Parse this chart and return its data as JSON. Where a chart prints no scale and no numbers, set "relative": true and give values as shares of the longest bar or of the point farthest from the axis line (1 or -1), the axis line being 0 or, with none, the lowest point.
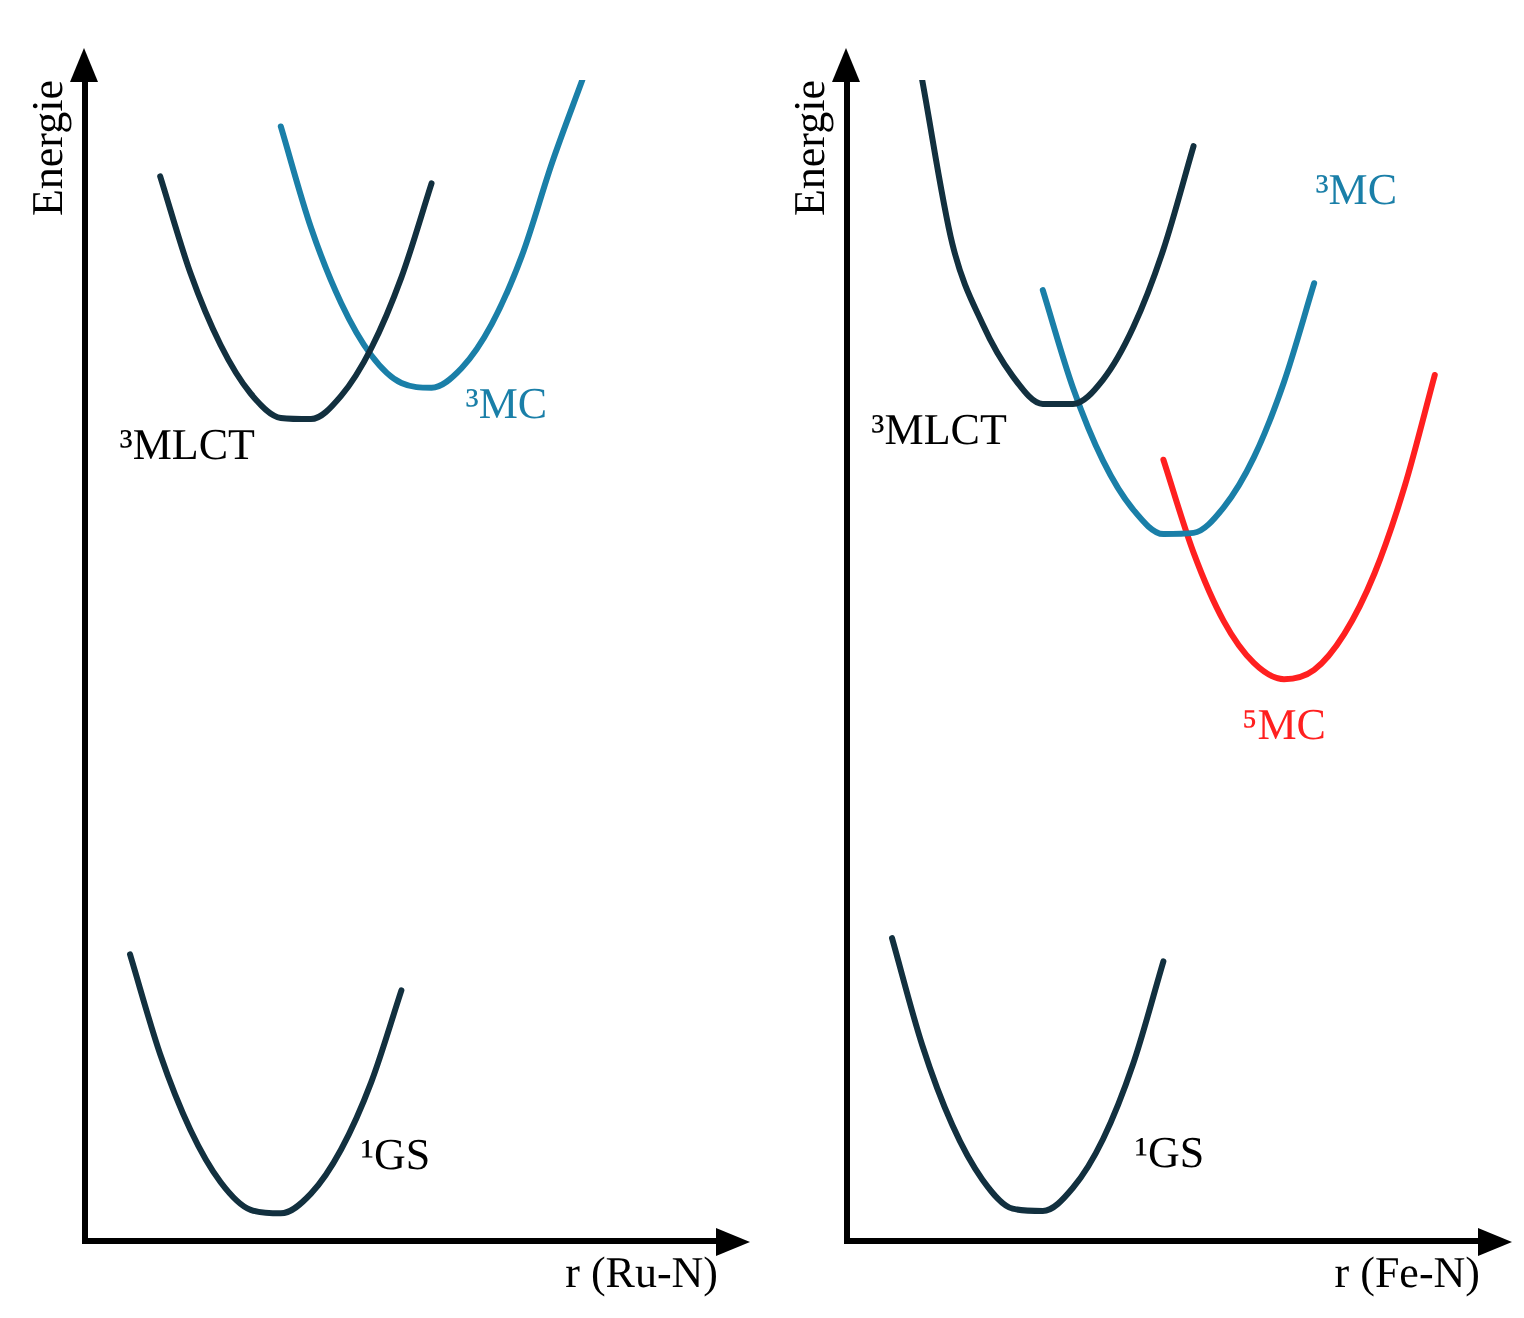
{
  "chart_data": [
    {
      "type": "line",
      "relative": true,
      "ylabel": "Energie",
      "xlabel": "r (Ru-N)",
      "marker": "none",
      "line_style": "solid",
      "categories": [
        null,
        null,
        null,
        null,
        null,
        null,
        null,
        null,
        null,
        null,
        null,
        null,
        null,
        null,
        null,
        null,
        null,
        null,
        null,
        null,
        null
      ],
      "series": [
        {
          "name": "³MLCT",
          "color": "#12303f",
          "values": [
            null,
            null,
            0.917,
            0.834,
            0.772,
            0.73,
            0.709,
            0.708,
            0.728,
            0.769,
            0.83,
            0.911,
            null,
            null,
            null,
            null,
            null,
            null,
            null,
            null,
            null
          ]
        },
        {
          "name": "³MC",
          "color": "#1a7fa8",
          "values": [
            null,
            null,
            null,
            null,
            null,
            null,
            0.96,
            0.873,
            0.808,
            0.763,
            0.739,
            0.735,
            0.752,
            0.79,
            0.849,
            0.929,
            1.0,
            null,
            null,
            null,
            null
          ]
        },
        {
          "name": "¹GS",
          "color": "#12303f",
          "values": [
            null,
            0.247,
            0.161,
            0.096,
            0.051,
            0.027,
            0.024,
            0.041,
            0.079,
            0.137,
            0.216,
            null,
            null,
            null,
            null,
            null,
            null,
            null,
            null,
            null,
            null
          ]
        }
      ]
    },
    {
      "type": "line",
      "relative": true,
      "ylabel": "Energie",
      "xlabel": "r (Fe-N)",
      "marker": "none",
      "line_style": "solid",
      "categories": [
        null,
        null,
        null,
        null,
        null,
        null,
        null,
        null,
        null,
        null,
        null,
        null,
        null,
        null,
        null,
        null,
        null,
        null,
        null,
        null,
        null
      ],
      "series": [
        {
          "name": "³MLCT",
          "color": "#12303f",
          "values": [
            null,
            null,
            1.0,
            0.859,
            0.79,
            0.745,
            0.721,
            0.721,
            0.742,
            0.787,
            0.854,
            0.943,
            null,
            null,
            null,
            null,
            null,
            null,
            null,
            null,
            null
          ]
        },
        {
          "name": "³MC",
          "color": "#1a7fa8",
          "values": [
            null,
            null,
            null,
            null,
            null,
            null,
            0.819,
            0.735,
            0.672,
            0.63,
            0.609,
            0.61,
            0.632,
            0.675,
            0.74,
            0.825,
            null,
            null,
            null,
            null,
            null
          ]
        },
        {
          "name": "⁵MC",
          "color": "#ff2020",
          "values": [
            null,
            null,
            null,
            null,
            null,
            null,
            null,
            null,
            null,
            null,
            0.673,
            0.593,
            0.534,
            0.498,
            0.484,
            0.492,
            0.523,
            0.575,
            0.65,
            0.746,
            null
          ]
        },
        {
          "name": "¹GS",
          "color": "#12303f",
          "values": [
            null,
            0.261,
            0.169,
            0.1,
            0.053,
            0.028,
            0.026,
            0.046,
            0.088,
            0.153,
            0.241,
            null,
            null,
            null,
            null,
            null,
            null,
            null,
            null,
            null,
            null
          ]
        }
      ]
    }
  ]
}
